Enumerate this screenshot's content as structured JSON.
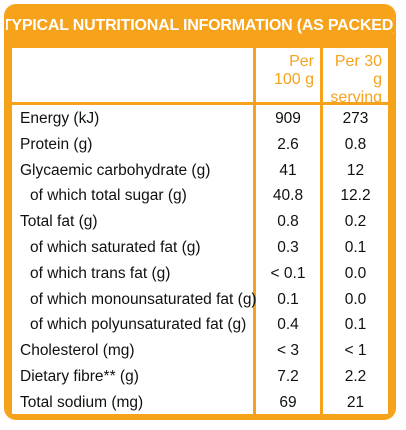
{
  "title": "TYPICAL NUTRITIONAL INFORMATION (AS PACKED)",
  "columns": {
    "per100_line1": "Per",
    "per100_line2": "100 g",
    "serving_line1": "Per 30 g",
    "serving_line2": "serving"
  },
  "rows": [
    {
      "label": "Energy (kJ)",
      "per100": "909",
      "serving": "273",
      "indent": false
    },
    {
      "label": "Protein (g)",
      "per100": "2.6",
      "serving": "0.8",
      "indent": false
    },
    {
      "label": "Glycaemic carbohydrate (g)",
      "per100": "41",
      "serving": "12",
      "indent": false
    },
    {
      "label": "of which total sugar (g)",
      "per100": "40.8",
      "serving": "12.2",
      "indent": true
    },
    {
      "label": "Total fat (g)",
      "per100": "0.8",
      "serving": "0.2",
      "indent": false
    },
    {
      "label": "of which saturated fat (g)",
      "per100": "0.3",
      "serving": "0.1",
      "indent": true
    },
    {
      "label": "of which trans fat (g)",
      "per100": "< 0.1",
      "serving": "0.0",
      "indent": true
    },
    {
      "label": "of which monounsaturated fat (g)",
      "per100": "0.1",
      "serving": "0.0",
      "indent": true
    },
    {
      "label": "of which polyunsaturated fat (g)",
      "per100": "0.4",
      "serving": "0.1",
      "indent": true
    },
    {
      "label": "Cholesterol (mg)",
      "per100": "< 3",
      "serving": "< 1",
      "indent": false
    },
    {
      "label": "Dietary fibre** (g)",
      "per100": "7.2",
      "serving": "2.2",
      "indent": false
    },
    {
      "label": "Total sodium (mg)",
      "per100": "69",
      "serving": "21",
      "indent": false
    }
  ],
  "colors": {
    "accent": "#f7a21b",
    "background": "#ffffff",
    "text": "#111111"
  }
}
